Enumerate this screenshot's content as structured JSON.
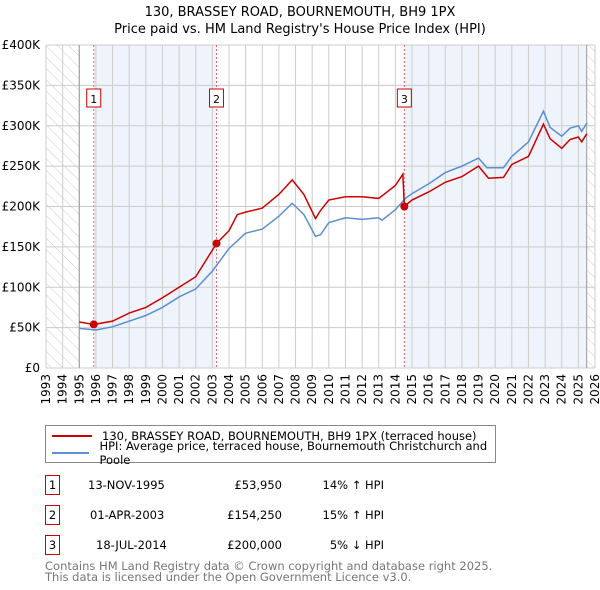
{
  "title": "130, BRASSEY ROAD, BOURNEMOUTH, BH9 1PX",
  "subtitle": "Price paid vs. HM Land Registry's House Price Index (HPI)",
  "legend": [
    {
      "label": "130, BRASSEY ROAD, BOURNEMOUTH, BH9 1PX (terraced house)",
      "color": "#cc0000"
    },
    {
      "label": "HPI: Average price, terraced house, Bournemouth Christchurch and Poole",
      "color": "#5b8fd1"
    }
  ],
  "sales": [
    {
      "num": "1",
      "date": "13-NOV-1995",
      "price": "£53,950",
      "hpi": "14% ↑ HPI",
      "x": 1995.87,
      "y": 53950
    },
    {
      "num": "2",
      "date": "01-APR-2003",
      "price": "£154,250",
      "hpi": "15% ↑ HPI",
      "x": 2003.25,
      "y": 154250
    },
    {
      "num": "3",
      "date": "18-JUL-2014",
      "price": "£200,000",
      "hpi": "5% ↓ HPI",
      "x": 2014.54,
      "y": 200000
    }
  ],
  "footer": [
    "Contains HM Land Registry data © Crown copyright and database right 2025.",
    "This data is licensed under the Open Government Licence v3.0."
  ],
  "chart_data": {
    "type": "line",
    "xlim": [
      1993,
      2026
    ],
    "ylim": [
      0,
      400000
    ],
    "yticks": [
      0,
      50000,
      100000,
      150000,
      200000,
      250000,
      300000,
      350000,
      400000
    ],
    "ytick_labels": [
      "£0",
      "£50K",
      "£100K",
      "£150K",
      "£200K",
      "£250K",
      "£300K",
      "£350K",
      "£400K"
    ],
    "xticks": [
      1993,
      1994,
      1995,
      1996,
      1997,
      1998,
      1999,
      2000,
      2001,
      2002,
      2003,
      2004,
      2005,
      2006,
      2007,
      2008,
      2009,
      2010,
      2011,
      2012,
      2013,
      2014,
      2015,
      2016,
      2017,
      2018,
      2019,
      2020,
      2021,
      2022,
      2023,
      2024,
      2025,
      2026
    ],
    "data_start": 1995,
    "data_end": 2025.5,
    "series": [
      {
        "name": "price",
        "color": "#cc0000",
        "points": [
          [
            1995,
            57000
          ],
          [
            1995.87,
            53950
          ],
          [
            1997,
            58000
          ],
          [
            1998,
            68000
          ],
          [
            1999,
            75000
          ],
          [
            2000,
            87000
          ],
          [
            2001,
            100000
          ],
          [
            2002,
            113000
          ],
          [
            2003.25,
            154250
          ],
          [
            2004,
            170000
          ],
          [
            2004.5,
            190000
          ],
          [
            2005,
            193000
          ],
          [
            2006,
            198000
          ],
          [
            2007,
            215000
          ],
          [
            2007.8,
            233000
          ],
          [
            2008.5,
            215000
          ],
          [
            2009.2,
            185000
          ],
          [
            2009.5,
            195000
          ],
          [
            2010,
            208000
          ],
          [
            2011,
            212000
          ],
          [
            2012,
            212000
          ],
          [
            2013,
            210000
          ],
          [
            2014,
            226000
          ],
          [
            2014.45,
            240000
          ],
          [
            2014.54,
            200000
          ],
          [
            2015,
            208000
          ],
          [
            2016,
            218000
          ],
          [
            2017,
            230000
          ],
          [
            2018,
            237000
          ],
          [
            2019,
            250000
          ],
          [
            2019.6,
            235000
          ],
          [
            2020.5,
            236000
          ],
          [
            2021,
            252000
          ],
          [
            2022,
            262000
          ],
          [
            2022.9,
            302000
          ],
          [
            2023.3,
            284000
          ],
          [
            2024,
            272000
          ],
          [
            2024.5,
            283000
          ],
          [
            2025,
            286000
          ],
          [
            2025.2,
            280000
          ],
          [
            2025.5,
            290000
          ]
        ]
      },
      {
        "name": "hpi",
        "color": "#5b8fd1",
        "points": [
          [
            1995,
            49000
          ],
          [
            1996,
            47000
          ],
          [
            1997,
            51000
          ],
          [
            1998,
            58000
          ],
          [
            1999,
            65000
          ],
          [
            2000,
            75000
          ],
          [
            2001,
            88000
          ],
          [
            2002,
            98000
          ],
          [
            2003,
            120000
          ],
          [
            2004,
            148000
          ],
          [
            2005,
            167000
          ],
          [
            2006,
            172000
          ],
          [
            2007,
            188000
          ],
          [
            2007.8,
            204000
          ],
          [
            2008.5,
            190000
          ],
          [
            2009.2,
            163000
          ],
          [
            2009.5,
            165000
          ],
          [
            2010,
            180000
          ],
          [
            2011,
            186000
          ],
          [
            2012,
            184000
          ],
          [
            2013,
            186000
          ],
          [
            2013.2,
            183000
          ],
          [
            2014,
            196000
          ],
          [
            2014.6,
            210000
          ],
          [
            2015,
            216000
          ],
          [
            2016,
            228000
          ],
          [
            2017,
            242000
          ],
          [
            2018,
            250000
          ],
          [
            2019,
            260000
          ],
          [
            2019.5,
            248000
          ],
          [
            2020.5,
            248000
          ],
          [
            2021,
            262000
          ],
          [
            2022,
            280000
          ],
          [
            2022.9,
            318000
          ],
          [
            2023.3,
            298000
          ],
          [
            2024,
            287000
          ],
          [
            2024.5,
            297000
          ],
          [
            2025,
            300000
          ],
          [
            2025.2,
            293000
          ],
          [
            2025.5,
            303000
          ]
        ]
      }
    ]
  }
}
